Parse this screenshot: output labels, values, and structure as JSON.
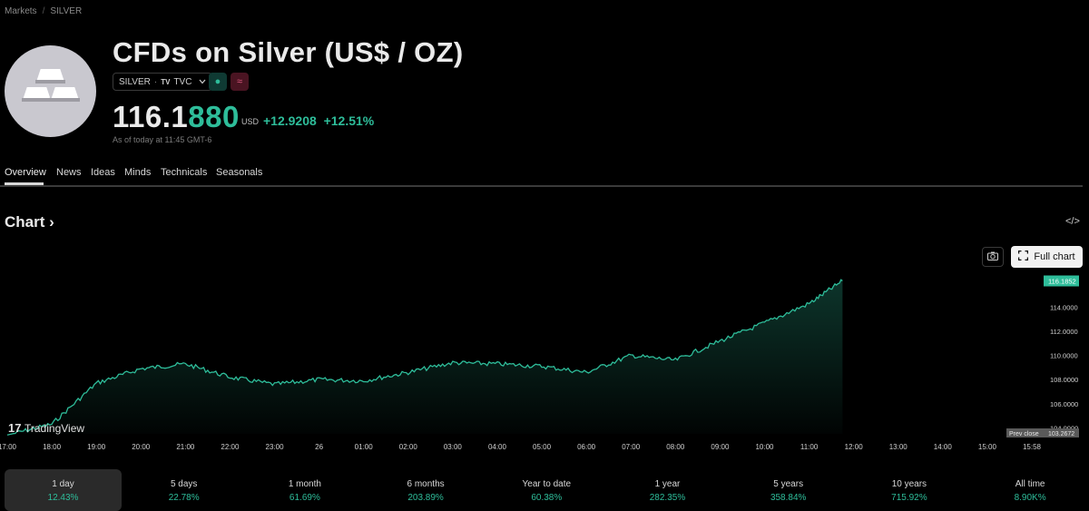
{
  "breadcrumb": {
    "root": "Markets",
    "separator": "/",
    "current": "SILVER"
  },
  "header": {
    "title": "CFDs on Silver (US$ / OZ)",
    "symbol": "SILVER",
    "exchange": "TVC",
    "price_main": "116.1",
    "price_highlight": "880",
    "currency": "USD",
    "change": "+12.9208",
    "change_pct": "+12.51%",
    "as_of": "As of today at 11:45 GMT-6"
  },
  "tabs": [
    "Overview",
    "News",
    "Ideas",
    "Minds",
    "Technicals",
    "Seasonals"
  ],
  "chart_section": {
    "title": "Chart",
    "full_chart_label": "Full chart"
  },
  "chart_data": {
    "type": "area",
    "x_ticks": [
      "17:00",
      "18:00",
      "19:00",
      "20:00",
      "21:00",
      "22:00",
      "23:00",
      "26",
      "01:00",
      "02:00",
      "03:00",
      "04:00",
      "05:00",
      "06:00",
      "07:00",
      "08:00",
      "09:00",
      "10:00",
      "11:00",
      "12:00",
      "13:00",
      "14:00",
      "15:00",
      "15:58"
    ],
    "y_ticks": [
      "104.0000",
      "106.0000",
      "108.0000",
      "110.0000",
      "112.0000",
      "114.0000"
    ],
    "ylim": [
      103.5,
      116.6
    ],
    "x": [
      "17:00",
      "18:00",
      "19:00",
      "20:00",
      "21:00",
      "22:00",
      "23:00",
      "26",
      "01:00",
      "02:00",
      "03:00",
      "04:00",
      "05:00",
      "06:00",
      "07:00",
      "08:00",
      "09:00",
      "10:00",
      "11:00",
      "11:45"
    ],
    "y": [
      103.4,
      104.3,
      107.7,
      108.9,
      109.3,
      108.2,
      107.6,
      108.0,
      107.9,
      108.6,
      109.4,
      109.3,
      109.1,
      108.6,
      110.0,
      109.6,
      111.2,
      112.7,
      114.3,
      116.19
    ],
    "last_label": "116.1852",
    "prev_close_label": "Prev close",
    "prev_close_value": "103.2672",
    "watermark": "TradingView",
    "line_color": "#2ebd9a"
  },
  "ranges": [
    {
      "label": "1 day",
      "value": "12.43%"
    },
    {
      "label": "5 days",
      "value": "22.78%"
    },
    {
      "label": "1 month",
      "value": "61.69%"
    },
    {
      "label": "6 months",
      "value": "203.89%"
    },
    {
      "label": "Year to date",
      "value": "60.38%"
    },
    {
      "label": "1 year",
      "value": "282.35%"
    },
    {
      "label": "5 years",
      "value": "358.84%"
    },
    {
      "label": "10 years",
      "value": "715.92%"
    },
    {
      "label": "All time",
      "value": "8.90K%"
    }
  ]
}
